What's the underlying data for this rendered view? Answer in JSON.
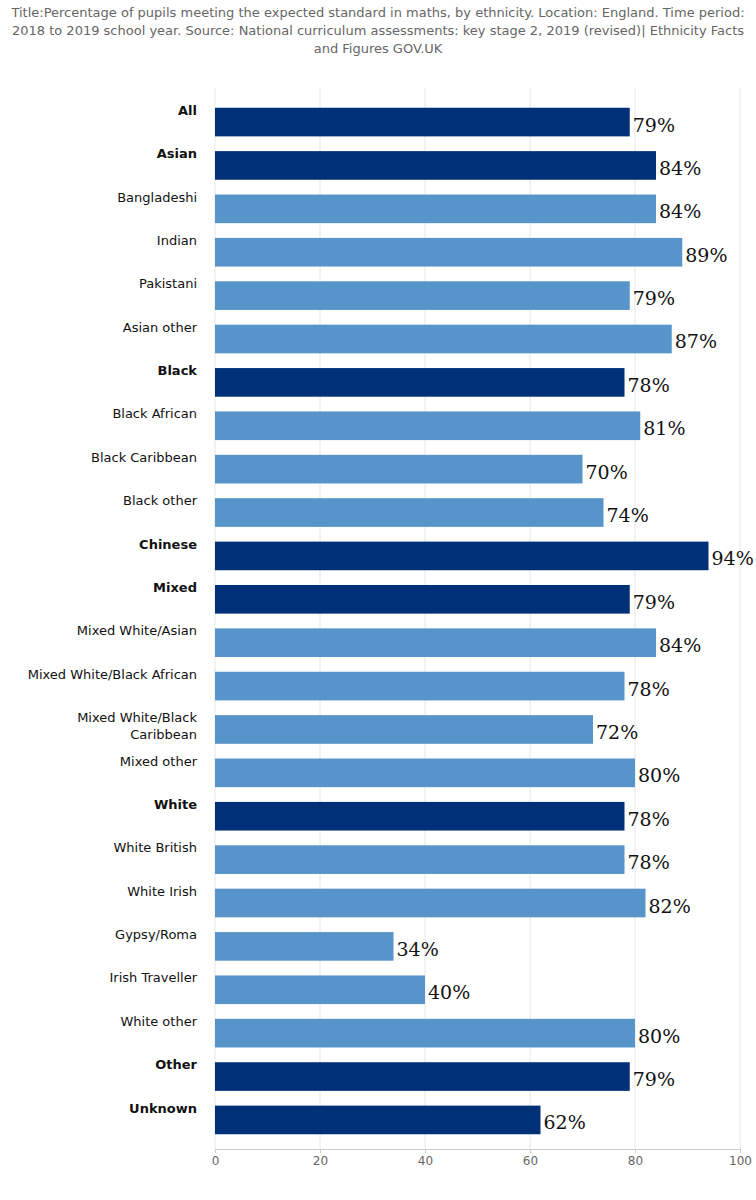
{
  "chart_data": {
    "type": "bar",
    "orientation": "horizontal",
    "title": "Title:Percentage of pupils meeting the expected standard in maths, by ethnicity. Location: England. Time period: 2018 to 2019 school year. Source: National curriculum assessments: key stage 2, 2019 (revised)| Ethnicity Facts and Figures GOV.UK",
    "categories": [
      "All",
      "Asian",
      "Bangladeshi",
      "Indian",
      "Pakistani",
      "Asian other",
      "Black",
      "Black African",
      "Black Caribbean",
      "Black other",
      "Chinese",
      "Mixed",
      "Mixed White/Asian",
      "Mixed White/Black African",
      "Mixed White/Black Caribbean",
      "Mixed other",
      "White",
      "White British",
      "White Irish",
      "Gypsy/Roma",
      "Irish Traveller",
      "White other",
      "Other",
      "Unknown"
    ],
    "values": [
      79,
      84,
      84,
      89,
      79,
      87,
      78,
      81,
      70,
      74,
      94,
      79,
      84,
      78,
      72,
      80,
      78,
      78,
      82,
      34,
      40,
      80,
      79,
      62
    ],
    "value_labels": [
      "79%",
      "84%",
      "84%",
      "89%",
      "79%",
      "87%",
      "78%",
      "81%",
      "70%",
      "74%",
      "94%",
      "79%",
      "84%",
      "78%",
      "72%",
      "80%",
      "78%",
      "78%",
      "82%",
      "34%",
      "40%",
      "80%",
      "79%",
      "62%"
    ],
    "colors": [
      "#003078",
      "#003078",
      "#5694ca",
      "#5694ca",
      "#5694ca",
      "#5694ca",
      "#003078",
      "#5694ca",
      "#5694ca",
      "#5694ca",
      "#003078",
      "#003078",
      "#5694ca",
      "#5694ca",
      "#5694ca",
      "#5694ca",
      "#003078",
      "#5694ca",
      "#5694ca",
      "#5694ca",
      "#5694ca",
      "#5694ca",
      "#003078",
      "#003078"
    ],
    "xlim": [
      0,
      100
    ],
    "xticks": [
      0,
      20,
      40,
      60,
      80,
      100
    ],
    "grid": true,
    "data_labels": true
  }
}
